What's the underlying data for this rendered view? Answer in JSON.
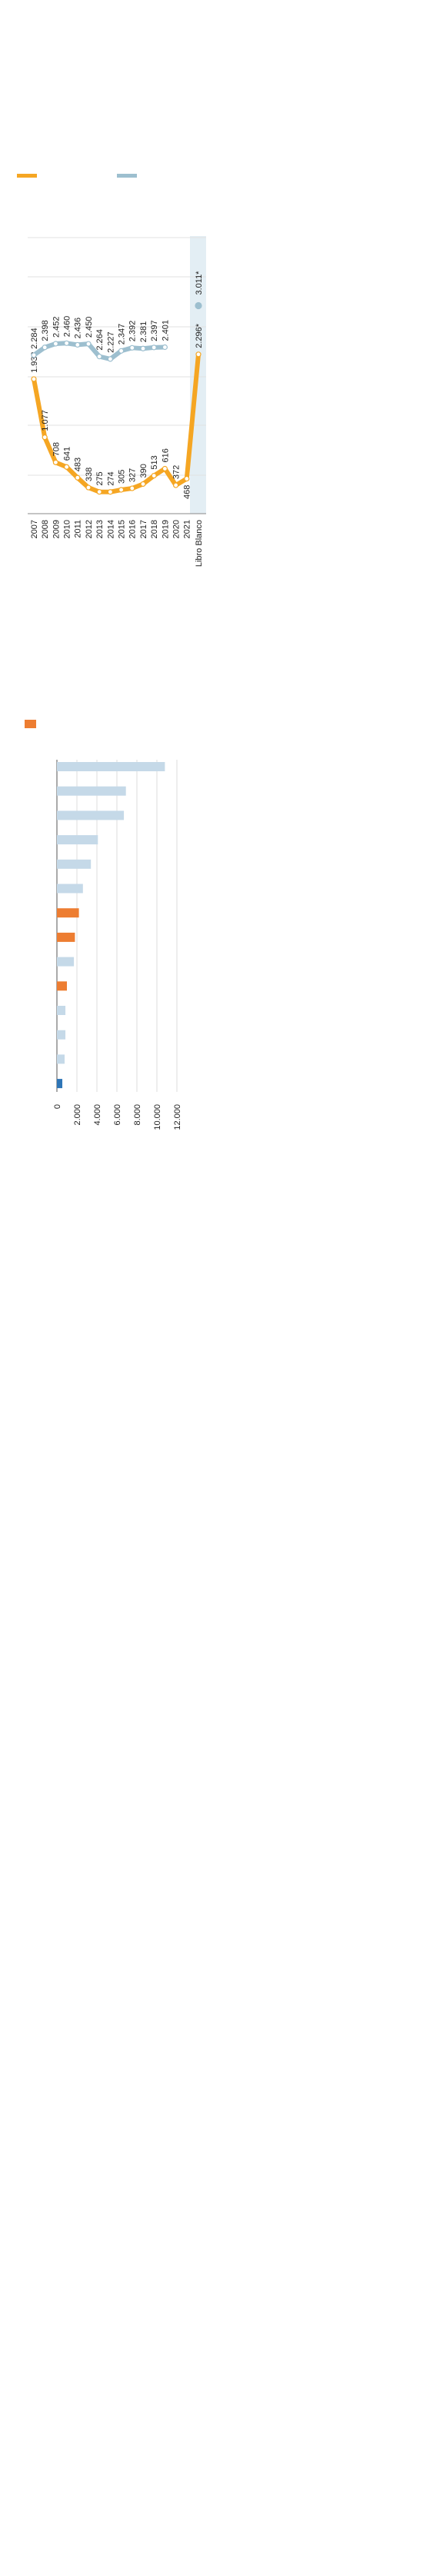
{
  "chart_data": [
    {
      "type": "line",
      "categories": [
        "2007",
        "2008",
        "2009",
        "2010",
        "2011",
        "2012",
        "2013",
        "2014",
        "2015",
        "2016",
        "2017",
        "2018",
        "2019",
        "2020",
        "2021",
        "Libro Blanco"
      ],
      "series": [
        {
          "color": "#f5a623",
          "values": [
            1933,
            1077,
            708,
            641,
            483,
            338,
            275,
            274,
            305,
            327,
            390,
            513,
            616,
            372,
            468,
            2296
          ],
          "value_labels": [
            "1.933",
            "1.077",
            "708",
            "641",
            "483",
            "338",
            "275",
            "274",
            "305",
            "327",
            "390",
            "513",
            "616",
            "372",
            "468",
            "2.296*"
          ]
        },
        {
          "color": "#9dbfcf",
          "values": [
            2284,
            2398,
            2452,
            2460,
            2436,
            2450,
            2264,
            2227,
            2347,
            2392,
            2381,
            2397,
            2401,
            null,
            null,
            3011
          ],
          "value_labels": [
            "2.284",
            "2.398",
            "2.452",
            "2.460",
            "2.436",
            "2.450",
            "2.264",
            "2.227",
            "2.347",
            "2.392",
            "2.381",
            "2.397",
            "2.401",
            null,
            null,
            "3.011*"
          ]
        }
      ],
      "ylim": [
        0,
        4000
      ]
    },
    {
      "type": "bar",
      "categories": [
        null,
        null,
        null,
        null,
        null,
        null,
        null,
        null,
        null,
        null,
        null,
        null,
        null,
        null
      ],
      "values": [
        10800,
        6900,
        6700,
        4100,
        3400,
        2600,
        2200,
        1800,
        1700,
        1000,
        850,
        850,
        770,
        540
      ],
      "colors": [
        "#c5d9e8",
        "#c5d9e8",
        "#c5d9e8",
        "#c5d9e8",
        "#c5d9e8",
        "#c5d9e8",
        "#ed7d31",
        "#ed7d31",
        "#c5d9e8",
        "#ed7d31",
        "#c5d9e8",
        "#c5d9e8",
        "#c5d9e8",
        "#2e75b6"
      ],
      "xlim": [
        0,
        12000
      ],
      "xticks": [
        0,
        {
          "value": 2000,
          "label": "2.000"
        },
        {
          "value": 4000,
          "label": "4.000"
        },
        {
          "value": 6000,
          "label": "6.000"
        },
        {
          "value": 8000,
          "label": "8.000"
        },
        {
          "value": 10000,
          "label": "10.000"
        },
        {
          "value": 12000,
          "label": "12.000"
        }
      ],
      "grid": true
    }
  ]
}
